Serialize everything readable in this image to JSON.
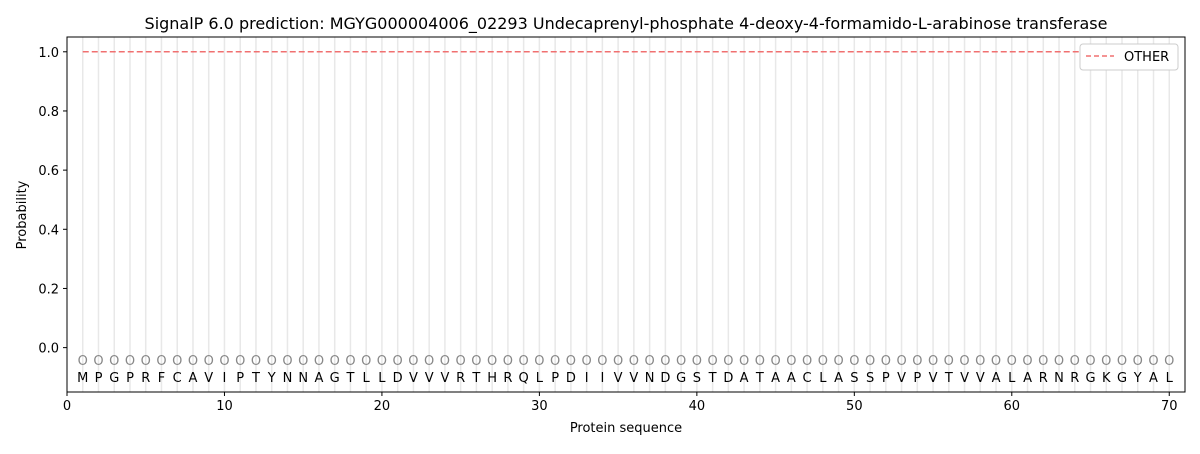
{
  "chart_data": {
    "type": "line",
    "title": "SignalP 6.0 prediction: MGYG000004006_02293 Undecaprenyl-phosphate 4-deoxy-4-formamido-L-arabinose transferase",
    "xlabel": "Protein sequence",
    "ylabel": "Probability",
    "xlim": [
      0,
      71
    ],
    "ylim": [
      -0.15,
      1.05
    ],
    "xticks": [
      "0",
      "10",
      "20",
      "30",
      "40",
      "50",
      "60",
      "70"
    ],
    "yticks": [
      "0.0",
      "0.2",
      "0.4",
      "0.6",
      "0.8",
      "1.0"
    ],
    "grid": "vertical lines at each residue",
    "legend_placement": "top-right",
    "sequence": [
      "M",
      "P",
      "G",
      "P",
      "R",
      "F",
      "C",
      "A",
      "V",
      "I",
      "P",
      "T",
      "Y",
      "N",
      "N",
      "A",
      "G",
      "T",
      "L",
      "L",
      "D",
      "V",
      "V",
      "V",
      "R",
      "T",
      "H",
      "R",
      "Q",
      "L",
      "P",
      "D",
      "I",
      "I",
      "V",
      "V",
      "N",
      "D",
      "G",
      "S",
      "T",
      "D",
      "A",
      "T",
      "A",
      "A",
      "C",
      "L",
      "A",
      "S",
      "S",
      "P",
      "V",
      "P",
      "V",
      "T",
      "V",
      "V",
      "A",
      "L",
      "A",
      "R",
      "N",
      "R",
      "G",
      "K",
      "G",
      "Y",
      "A",
      "L"
    ],
    "predicted_label": "O",
    "series": [
      {
        "name": "OTHER",
        "color": "#f07070",
        "style": "dashed",
        "x_range": [
          1,
          70
        ],
        "value": 1.0
      }
    ]
  }
}
